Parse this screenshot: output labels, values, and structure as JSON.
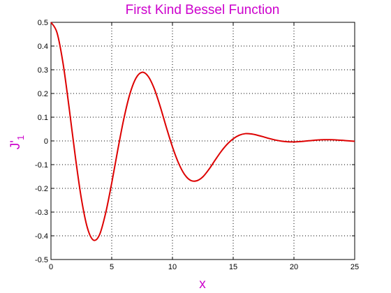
{
  "chart_data": {
    "type": "line",
    "title": "First Kind Bessel Function",
    "xlabel": "x",
    "ylabel_main": "J'",
    "ylabel_sub": "1",
    "xlim": [
      0,
      25
    ],
    "ylim": [
      -0.5,
      0.5
    ],
    "xticks": [
      0,
      5,
      10,
      15,
      20,
      25
    ],
    "yticks": [
      -0.5,
      -0.4,
      -0.3,
      -0.2,
      -0.1,
      0,
      0.1,
      0.2,
      0.3,
      0.4,
      0.5
    ],
    "xtick_labels": [
      "0",
      "5",
      "10",
      "15",
      "20",
      "25"
    ],
    "ytick_labels": [
      "-0.5",
      "-0.4",
      "-0.3",
      "-0.2",
      "-0.1",
      "0",
      "0.1",
      "0.2",
      "0.3",
      "0.4",
      "0.5"
    ],
    "grid": true,
    "line_color": "#dd0000",
    "text_color": "#cc00cc",
    "series": [
      {
        "x": [
          0,
          0.5,
          1,
          1.5,
          2,
          2.5,
          3,
          3.5,
          4,
          4.5,
          5,
          5.5,
          6,
          6.5,
          7,
          7.5,
          8,
          8.5,
          9,
          9.5,
          10,
          10.5,
          11,
          11.5,
          12,
          12.5,
          13,
          13.5,
          14,
          14.5,
          15,
          15.5,
          16,
          16.5,
          17,
          17.5,
          18,
          18.5,
          19,
          19.5,
          20,
          20.5,
          21,
          21.5,
          22,
          22.5,
          23,
          23.5,
          24,
          24.5,
          25
        ],
        "values": [
          0.5,
          0.4559,
          0.3251,
          0.1374,
          -0.0645,
          -0.2426,
          -0.3668,
          -0.4183,
          -0.3952,
          -0.3042,
          -0.1776,
          -0.0373,
          0.0939,
          0.1987,
          0.265,
          0.2894,
          0.2723,
          0.2205,
          0.1437,
          0.0566,
          -0.0252,
          -0.0934,
          -0.1418,
          -0.1665,
          -0.168,
          -0.1515,
          -0.1199,
          -0.0819,
          -0.045,
          -0.0142,
          0.0091,
          0.0241,
          0.0307,
          0.0293,
          0.024,
          0.0171,
          0.0098,
          0.0035,
          -0.0011,
          -0.0037,
          -0.0041,
          -0.0028,
          -0.0005,
          0.002,
          0.004,
          0.005,
          0.005,
          0.0041,
          0.0024,
          0.0004,
          -0.0015
        ]
      }
    ]
  }
}
